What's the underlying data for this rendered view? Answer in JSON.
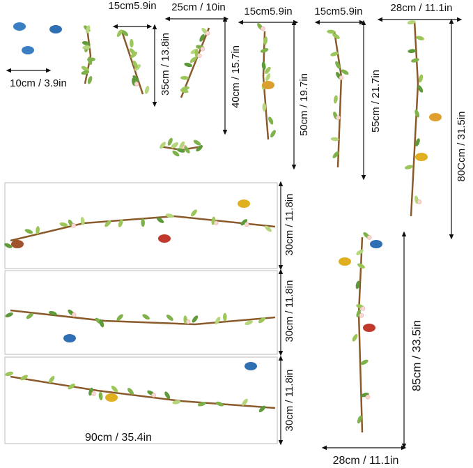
{
  "labels": {
    "top": [
      "15cm5.9in",
      "25cm / 10in",
      "15cm5.9in",
      "15cm5.9in",
      "28cm / 11.1in"
    ],
    "small": "10cm / 3.9in",
    "heights": [
      "35cm / 13.8in",
      "40cm / 15.7in",
      "50cm / 19.7in",
      "55cm / 21.7in",
      "80Ccm / 31.5in"
    ],
    "panels": [
      "30cm / 11.8in",
      "30cm / 11.8in",
      "30cm / 11.8in"
    ],
    "long_vine": "85cm / 33.5in",
    "panel_width": "90cm / 35.4in",
    "long_vine_width": "28cm / 11.1in"
  }
}
